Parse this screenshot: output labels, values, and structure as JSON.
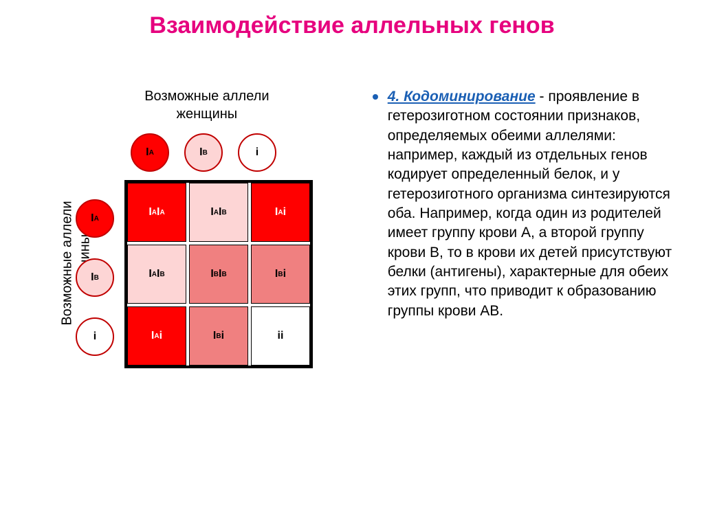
{
  "title": "Взаимодействие аллельных генов",
  "title_color": "#e6007e",
  "female_label_line1": "Возможные аллели",
  "female_label_line2": "женщины",
  "male_label_line1": "Возможные аллели",
  "male_label_line2": "мужчины",
  "text_color": "#000000",
  "circle_border": "#c00000",
  "colors": {
    "dark_red": "#ff0000",
    "mid_red": "#f08080",
    "light_pink": "#fdd5d5",
    "white": "#ffffff"
  },
  "col_circles": [
    {
      "base": "I",
      "sup": "A",
      "bg": "#ff0000",
      "fg": "#000000"
    },
    {
      "base": "I",
      "sup": "B",
      "bg": "#fdd5d5",
      "fg": "#000000"
    },
    {
      "base": "i",
      "sup": "",
      "bg": "#ffffff",
      "fg": "#000000"
    }
  ],
  "row_circles": [
    {
      "base": "I",
      "sup": "A",
      "bg": "#ff0000",
      "fg": "#000000"
    },
    {
      "base": "I",
      "sup": "B",
      "bg": "#fdd5d5",
      "fg": "#000000"
    },
    {
      "base": "i",
      "sup": "",
      "bg": "#ffffff",
      "fg": "#000000"
    }
  ],
  "grid": [
    [
      {
        "label_parts": [
          [
            "I",
            "A"
          ],
          [
            "I",
            "A"
          ]
        ],
        "bg": "#ff0000",
        "fg": "#ffffff"
      },
      {
        "label_parts": [
          [
            "I",
            "A"
          ],
          [
            "I",
            "B"
          ]
        ],
        "bg": "#fdd5d5",
        "fg": "#000000"
      },
      {
        "label_parts": [
          [
            "I",
            "A"
          ],
          [
            "i",
            ""
          ]
        ],
        "bg": "#ff0000",
        "fg": "#ffffff"
      }
    ],
    [
      {
        "label_parts": [
          [
            "I",
            "A"
          ],
          [
            "I",
            "B"
          ]
        ],
        "bg": "#fdd5d5",
        "fg": "#000000"
      },
      {
        "label_parts": [
          [
            "I",
            "B"
          ],
          [
            "I",
            "B"
          ]
        ],
        "bg": "#f08080",
        "fg": "#000000"
      },
      {
        "label_parts": [
          [
            "I",
            "B"
          ],
          [
            "i",
            ""
          ]
        ],
        "bg": "#f08080",
        "fg": "#000000"
      }
    ],
    [
      {
        "label_parts": [
          [
            "I",
            "A"
          ],
          [
            "i",
            ""
          ]
        ],
        "bg": "#ff0000",
        "fg": "#ffffff"
      },
      {
        "label_parts": [
          [
            "I",
            "B"
          ],
          [
            "i",
            ""
          ]
        ],
        "bg": "#f08080",
        "fg": "#000000"
      },
      {
        "label_parts": [
          [
            "i",
            ""
          ],
          [
            "i",
            ""
          ]
        ],
        "bg": "#ffffff",
        "fg": "#000000"
      }
    ]
  ],
  "bullet_color": "#1a5fb4",
  "term": "4. Кодоминирование",
  "term_color": "#1a5fb4",
  "body_text": " - проявление в гетерозиготном состоянии признаков, определяемых обеими аллелями: например, каждый из отдельных генов кодирует определенный белок, и у гетерозиготного организма синтезируются оба. Например, когда один из родителей имеет группу крови А, а второй группу крови В, то в крови их детей присутствуют белки (антигены), характерные для обеих этих групп, что приводит к образованию группы крови АВ."
}
